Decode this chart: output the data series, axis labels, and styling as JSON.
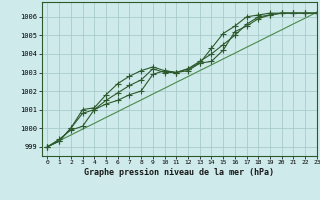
{
  "title": "Graphe pression niveau de la mer (hPa)",
  "background_color": "#ceeaea",
  "grid_color": "#a8cccc",
  "line_color_main": "#2d5a2d",
  "line_color_light": "#4a8a4a",
  "xlim": [
    -0.5,
    23
  ],
  "ylim": [
    998.5,
    1006.8
  ],
  "xticks": [
    0,
    1,
    2,
    3,
    4,
    5,
    6,
    7,
    8,
    9,
    10,
    11,
    12,
    13,
    14,
    15,
    16,
    17,
    18,
    19,
    20,
    21,
    22,
    23
  ],
  "yticks": [
    999,
    1000,
    1001,
    1002,
    1003,
    1004,
    1005,
    1006
  ],
  "series1": [
    999.0,
    999.4,
    999.9,
    1000.1,
    1001.0,
    1001.3,
    1001.5,
    1001.8,
    1002.0,
    1002.9,
    1003.1,
    1003.0,
    1003.2,
    1003.5,
    1003.6,
    1004.2,
    1005.2,
    1005.5,
    1005.9,
    1006.1,
    1006.2,
    1006.2,
    1006.2,
    1006.2
  ],
  "series2": [
    999.0,
    999.3,
    1000.0,
    1000.8,
    1001.0,
    1001.5,
    1001.9,
    1002.3,
    1002.6,
    1003.2,
    1003.0,
    1003.0,
    1003.2,
    1003.6,
    1004.0,
    1004.5,
    1005.0,
    1005.6,
    1006.0,
    1006.1,
    1006.2,
    1006.2,
    1006.2,
    1006.2
  ],
  "series3": [
    999.0,
    999.3,
    1000.0,
    1001.0,
    1001.1,
    1001.8,
    1002.4,
    1002.8,
    1003.1,
    1003.3,
    1003.1,
    1003.0,
    1003.1,
    1003.5,
    1004.3,
    1005.1,
    1005.5,
    1006.0,
    1006.1,
    1006.2,
    1006.2,
    1006.2,
    1006.2,
    1006.2
  ],
  "series_linear": [
    999.0,
    999.32,
    999.63,
    999.95,
    1000.26,
    1000.58,
    1000.89,
    1001.21,
    1001.52,
    1001.84,
    1002.15,
    1002.47,
    1002.78,
    1003.1,
    1003.41,
    1003.73,
    1004.04,
    1004.36,
    1004.67,
    1004.99,
    1005.3,
    1005.62,
    1005.93,
    1006.25
  ]
}
